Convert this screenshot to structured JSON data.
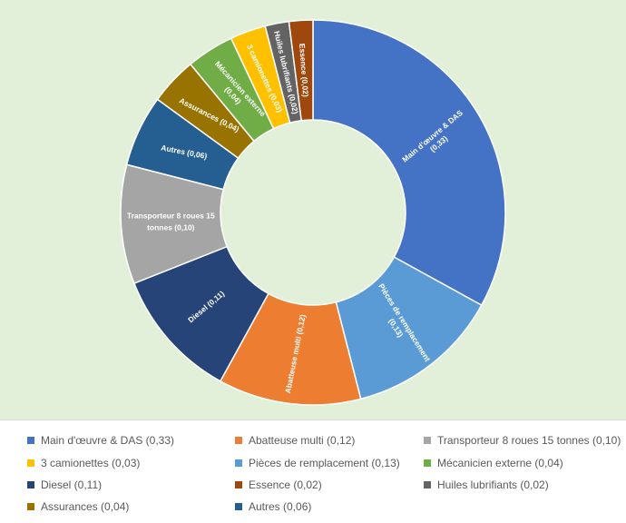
{
  "chart_data": {
    "type": "pie",
    "donut": true,
    "title": "",
    "slices": [
      {
        "name": "Main d'œuvre & DAS",
        "value": 0.33,
        "label": "Main d'œuvre & DAS (0,33)",
        "color": "#4472c4"
      },
      {
        "name": "Pièces de remplacement",
        "value": 0.13,
        "label": "Pièces de remplacement (0,13)",
        "color": "#5b9bd5"
      },
      {
        "name": "Abatteuse multi",
        "value": 0.12,
        "label": "Abatteuse multi (0,12)",
        "color": "#ed7d31"
      },
      {
        "name": "Diesel",
        "value": 0.11,
        "label": "Diesel (0,11)",
        "color": "#264478"
      },
      {
        "name": "Transporteur 8 roues 15 tonnes",
        "value": 0.1,
        "label": "Transporteur 8 roues 15 tonnes (0,10)",
        "color": "#a5a5a5"
      },
      {
        "name": "Autres",
        "value": 0.06,
        "label": "Autres (0,06)",
        "color": "#255e91"
      },
      {
        "name": "Assurances",
        "value": 0.04,
        "label": "Assurances (0,04)",
        "color": "#997300"
      },
      {
        "name": "Mécanicien externe",
        "value": 0.04,
        "label": "Mécanicien externe (0,04)",
        "color": "#70ad47"
      },
      {
        "name": "3 camionettes",
        "value": 0.03,
        "label": "3 camionettes (0,03)",
        "color": "#ffc000"
      },
      {
        "name": "Huiles lubrifiants",
        "value": 0.02,
        "label": "Huiles lubrifiants (0,02)",
        "color": "#636363"
      },
      {
        "name": "Essence",
        "value": 0.02,
        "label": "Essence (0,02)",
        "color": "#9e480e"
      }
    ],
    "legend": {
      "position": "bottom",
      "items": [
        {
          "slice": 0,
          "text": "Main d'œuvre & DAS (0,33)"
        },
        {
          "slice": 2,
          "text": "Abatteuse multi (0,12)"
        },
        {
          "slice": 4,
          "text": "Transporteur 8 roues 15 tonnes (0,10)"
        },
        {
          "slice": 8,
          "text": "3 camionettes (0,03)"
        },
        {
          "slice": 1,
          "text": "Pièces de remplacement (0,13)"
        },
        {
          "slice": 7,
          "text": "Mécanicien externe (0,04)"
        },
        {
          "slice": 3,
          "text": "Diesel (0,11)"
        },
        {
          "slice": 10,
          "text": "Essence (0,02)"
        },
        {
          "slice": 9,
          "text": "Huiles lubrifiants (0,02)"
        },
        {
          "slice": 6,
          "text": "Assurances (0,04)"
        },
        {
          "slice": 5,
          "text": "Autres (0,06)"
        }
      ]
    }
  }
}
